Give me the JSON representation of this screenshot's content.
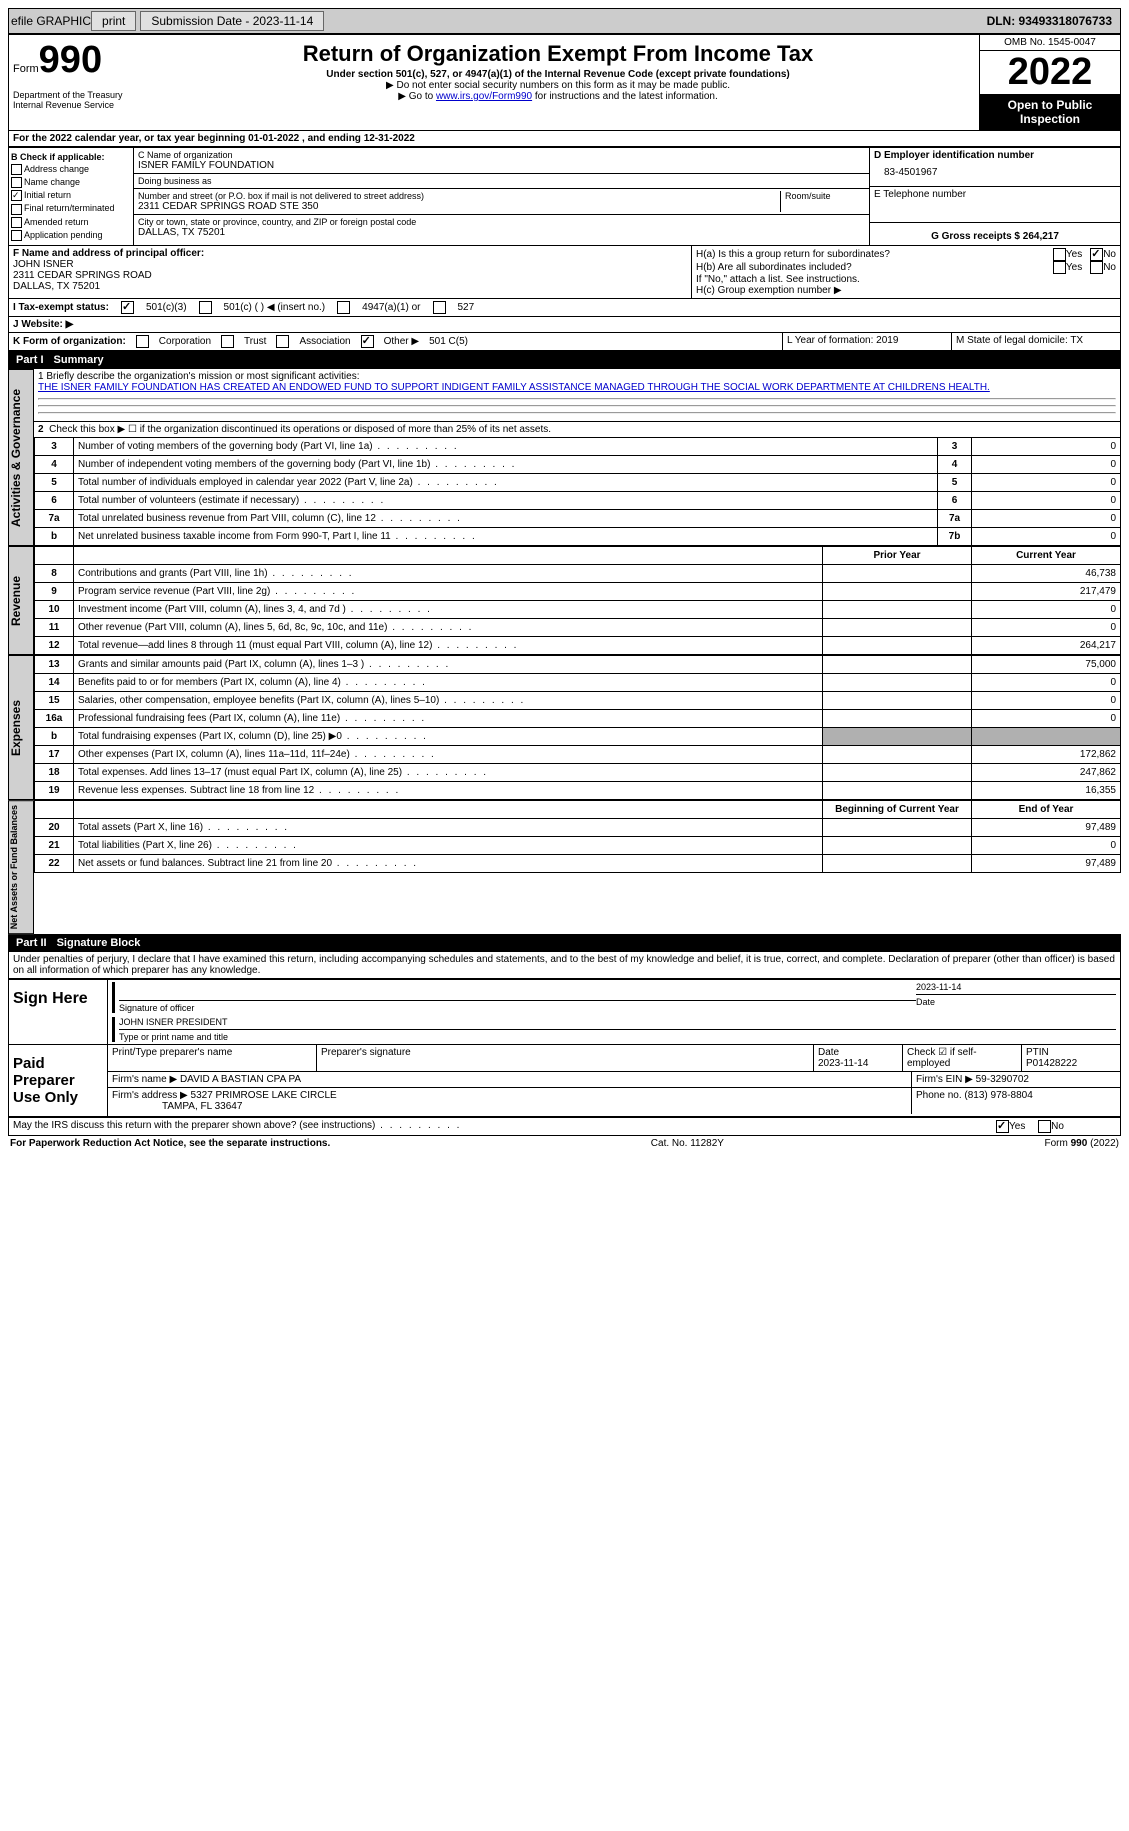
{
  "topbar": {
    "efile": "efile GRAPHIC",
    "print": "print",
    "sub_label": "Submission Date - 2023-11-14",
    "dln_label": "DLN: 93493318076733"
  },
  "header": {
    "form_word": "Form",
    "form_num": "990",
    "title": "Return of Organization Exempt From Income Tax",
    "sub1": "Under section 501(c), 527, or 4947(a)(1) of the Internal Revenue Code (except private foundations)",
    "sub2": "▶ Do not enter social security numbers on this form as it may be made public.",
    "sub3_pre": "▶ Go to ",
    "sub3_link": "www.irs.gov/Form990",
    "sub3_post": " for instructions and the latest information.",
    "dept": "Department of the Treasury\nInternal Revenue Service",
    "omb": "OMB No. 1545-0047",
    "year": "2022",
    "open": "Open to Public Inspection"
  },
  "line_a": "For the 2022 calendar year, or tax year beginning 01-01-2022   , and ending 12-31-2022",
  "section_b": {
    "title": "B Check if applicable:",
    "items": [
      "Address change",
      "Name change",
      "Initial return",
      "Final return/terminated",
      "Amended return",
      "Application pending"
    ],
    "checked_idx": 2
  },
  "section_c": {
    "name_label": "C Name of organization",
    "name": "ISNER FAMILY FOUNDATION",
    "dba_label": "Doing business as",
    "dba": "",
    "addr_label": "Number and street (or P.O. box if mail is not delivered to street address)",
    "addr": "2311 CEDAR SPRINGS ROAD STE 350",
    "room_label": "Room/suite",
    "city_label": "City or town, state or province, country, and ZIP or foreign postal code",
    "city": "DALLAS, TX  75201"
  },
  "section_d": {
    "label": "D Employer identification number",
    "value": "83-4501967",
    "tel_label": "E Telephone number",
    "tel": "",
    "gross_label": "G Gross receipts $ 264,217"
  },
  "section_f": {
    "label": "F  Name and address of principal officer:",
    "name": "JOHN ISNER",
    "addr1": "2311 CEDAR SPRINGS ROAD",
    "addr2": "DALLAS, TX  75201"
  },
  "section_h": {
    "a": "H(a)  Is this a group return for subordinates?",
    "b": "H(b)  Are all subordinates included?",
    "b_note": "If \"No,\" attach a list. See instructions.",
    "c": "H(c)  Group exemption number ▶",
    "yes": "Yes",
    "no": "No"
  },
  "line_i": {
    "label": "I   Tax-exempt status:",
    "opt1": "501(c)(3)",
    "opt2": "501(c) (  ) ◀ (insert no.)",
    "opt3": "4947(a)(1) or",
    "opt4": "527"
  },
  "line_j": "J   Website: ▶",
  "line_k": {
    "label": "K Form of organization:",
    "opts": [
      "Corporation",
      "Trust",
      "Association",
      "Other ▶"
    ],
    "other_val": "501 C(5)",
    "l_label": "L Year of formation: 2019",
    "m_label": "M State of legal domicile: TX"
  },
  "part1": {
    "header": "Part I",
    "title": "Summary",
    "line1_label": "1  Briefly describe the organization's mission or most significant activities:",
    "mission": "THE ISNER FAMILY FOUNDATION HAS CREATED AN ENDOWED FUND TO SUPPORT INDIGENT FAMILY ASSISTANCE MANAGED THROUGH THE SOCIAL WORK DEPARTMENTE AT CHILDRENS HEALTH.",
    "line2": "Check this box ▶ ☐  if the organization discontinued its operations or disposed of more than 25% of its net assets.",
    "side_labels": [
      "Activities & Governance",
      "Revenue",
      "Expenses",
      "Net Assets or Fund Balances"
    ],
    "rows_gov": [
      {
        "n": "3",
        "label": "Number of voting members of the governing body (Part VI, line 1a)",
        "box": "3",
        "val": "0"
      },
      {
        "n": "4",
        "label": "Number of independent voting members of the governing body (Part VI, line 1b)",
        "box": "4",
        "val": "0"
      },
      {
        "n": "5",
        "label": "Total number of individuals employed in calendar year 2022 (Part V, line 2a)",
        "box": "5",
        "val": "0"
      },
      {
        "n": "6",
        "label": "Total number of volunteers (estimate if necessary)",
        "box": "6",
        "val": "0"
      },
      {
        "n": "7a",
        "label": "Total unrelated business revenue from Part VIII, column (C), line 12",
        "box": "7a",
        "val": "0"
      },
      {
        "n": "b",
        "label": "Net unrelated business taxable income from Form 990-T, Part I, line 11",
        "box": "7b",
        "val": "0"
      }
    ],
    "col_headers": {
      "prior": "Prior Year",
      "curr": "Current Year"
    },
    "rows_rev": [
      {
        "n": "8",
        "label": "Contributions and grants (Part VIII, line 1h)",
        "prior": "",
        "curr": "46,738"
      },
      {
        "n": "9",
        "label": "Program service revenue (Part VIII, line 2g)",
        "prior": "",
        "curr": "217,479"
      },
      {
        "n": "10",
        "label": "Investment income (Part VIII, column (A), lines 3, 4, and 7d )",
        "prior": "",
        "curr": "0"
      },
      {
        "n": "11",
        "label": "Other revenue (Part VIII, column (A), lines 5, 6d, 8c, 9c, 10c, and 11e)",
        "prior": "",
        "curr": "0"
      },
      {
        "n": "12",
        "label": "Total revenue—add lines 8 through 11 (must equal Part VIII, column (A), line 12)",
        "prior": "",
        "curr": "264,217"
      }
    ],
    "rows_exp": [
      {
        "n": "13",
        "label": "Grants and similar amounts paid (Part IX, column (A), lines 1–3 )",
        "prior": "",
        "curr": "75,000"
      },
      {
        "n": "14",
        "label": "Benefits paid to or for members (Part IX, column (A), line 4)",
        "prior": "",
        "curr": "0"
      },
      {
        "n": "15",
        "label": "Salaries, other compensation, employee benefits (Part IX, column (A), lines 5–10)",
        "prior": "",
        "curr": "0"
      },
      {
        "n": "16a",
        "label": "Professional fundraising fees (Part IX, column (A), line 11e)",
        "prior": "",
        "curr": "0"
      },
      {
        "n": "b",
        "label": "Total fundraising expenses (Part IX, column (D), line 25) ▶0",
        "prior": "GRAY",
        "curr": "GRAY"
      },
      {
        "n": "17",
        "label": "Other expenses (Part IX, column (A), lines 11a–11d, 11f–24e)",
        "prior": "",
        "curr": "172,862"
      },
      {
        "n": "18",
        "label": "Total expenses. Add lines 13–17 (must equal Part IX, column (A), line 25)",
        "prior": "",
        "curr": "247,862"
      },
      {
        "n": "19",
        "label": "Revenue less expenses. Subtract line 18 from line 12",
        "prior": "",
        "curr": "16,355"
      }
    ],
    "col_headers2": {
      "prior": "Beginning of Current Year",
      "curr": "End of Year"
    },
    "rows_net": [
      {
        "n": "20",
        "label": "Total assets (Part X, line 16)",
        "prior": "",
        "curr": "97,489"
      },
      {
        "n": "21",
        "label": "Total liabilities (Part X, line 26)",
        "prior": "",
        "curr": "0"
      },
      {
        "n": "22",
        "label": "Net assets or fund balances. Subtract line 21 from line 20",
        "prior": "",
        "curr": "97,489"
      }
    ]
  },
  "part2": {
    "header": "Part II",
    "title": "Signature Block",
    "declaration": "Under penalties of perjury, I declare that I have examined this return, including accompanying schedules and statements, and to the best of my knowledge and belief, it is true, correct, and complete. Declaration of preparer (other than officer) is based on all information of which preparer has any knowledge.",
    "sign_here": "Sign Here",
    "sig_officer": "Signature of officer",
    "sig_date": "2023-11-14",
    "sig_date_label": "Date",
    "sig_name": "JOHN ISNER  PRESIDENT",
    "sig_name_label": "Type or print name and title",
    "paid": "Paid Preparer Use Only",
    "prep_name_label": "Print/Type preparer's name",
    "prep_sig_label": "Preparer's signature",
    "date_label": "Date",
    "date_val": "2023-11-14",
    "check_label": "Check ☑ if self-employed",
    "ptin_label": "PTIN",
    "ptin": "P01428222",
    "firm_name_label": "Firm's name   ▶",
    "firm_name": "DAVID A BASTIAN CPA PA",
    "firm_ein_label": "Firm's EIN ▶",
    "firm_ein": "59-3290702",
    "firm_addr_label": "Firm's address ▶",
    "firm_addr1": "5327 PRIMROSE LAKE CIRCLE",
    "firm_addr2": "TAMPA, FL  33647",
    "phone_label": "Phone no.",
    "phone": "(813) 978-8804",
    "discuss": "May the IRS discuss this return with the preparer shown above? (see instructions)",
    "yes": "Yes",
    "no": "No"
  },
  "footer": {
    "left": "For Paperwork Reduction Act Notice, see the separate instructions.",
    "mid": "Cat. No. 11282Y",
    "right": "Form 990 (2022)"
  }
}
